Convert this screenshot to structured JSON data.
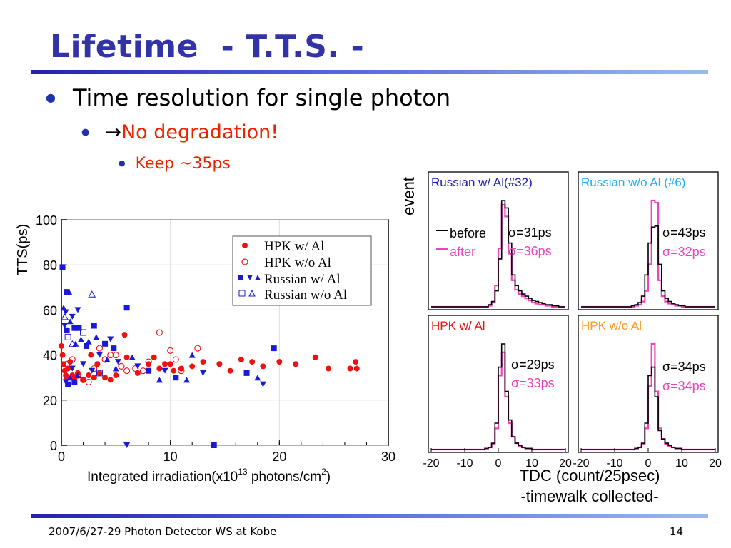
{
  "slide": {
    "title": "Lifetime  - T.T.S. -",
    "bullet1": "Time resolution for single photon",
    "bullet2_arrow": "→",
    "bullet2": "No degradation!",
    "bullet3": "Keep ~35ps",
    "footer_left": "2007/6/27-29 Photon Detector WS at Kobe",
    "footer_right": "14",
    "colors": {
      "title": "#3333a8",
      "accent": "#ee2200",
      "hpk": "#ee1111",
      "russian": "#1a1ad6"
    }
  },
  "chart_data": [
    {
      "type": "scatter",
      "ylabel": "TTS(ps)",
      "xlabel_main": "Integrated irradiation(x10",
      "xlabel_sup1": "13",
      "xlabel_mid": " photons/cm",
      "xlabel_sup2": "2",
      "xlabel_end": ")",
      "xlim": [
        0,
        30
      ],
      "ylim": [
        0,
        100
      ],
      "xticks": [
        "0",
        "10",
        "20",
        "30"
      ],
      "yticks": [
        "0",
        "20",
        "40",
        "60",
        "80",
        "100"
      ],
      "legend": [
        "HPK w/ Al",
        "HPK w/o Al",
        "Russian w/ Al",
        "Russian w/o Al"
      ],
      "legend_position": "top-right",
      "series": [
        {
          "name": "HPK w/ Al",
          "marker": "filled-circle",
          "color": "#ee1111",
          "points": [
            [
              0,
              44
            ],
            [
              0.1,
              40
            ],
            [
              0.2,
              36
            ],
            [
              0.3,
              33
            ],
            [
              0.4,
              31
            ],
            [
              0.5,
              30
            ],
            [
              0.6,
              34
            ],
            [
              0.8,
              37
            ],
            [
              1,
              31
            ],
            [
              1.2,
              30
            ],
            [
              1.5,
              32
            ],
            [
              2,
              29
            ],
            [
              2.5,
              31
            ],
            [
              2.7,
              40
            ],
            [
              3,
              30
            ],
            [
              3.3,
              36
            ],
            [
              3.5,
              32
            ],
            [
              4,
              30
            ],
            [
              4.5,
              29
            ],
            [
              5,
              31
            ],
            [
              5.8,
              49
            ],
            [
              6,
              39
            ],
            [
              7,
              32
            ],
            [
              8,
              36
            ],
            [
              8.5,
              39
            ],
            [
              9,
              34
            ],
            [
              9.5,
              36
            ],
            [
              10,
              36
            ],
            [
              10.3,
              33
            ],
            [
              11,
              34
            ],
            [
              12,
              35
            ],
            [
              13,
              37
            ],
            [
              14.5,
              36
            ],
            [
              15.5,
              33
            ],
            [
              16.5,
              38
            ],
            [
              17.5,
              37
            ],
            [
              18.5,
              35
            ],
            [
              20,
              37
            ],
            [
              21.5,
              36
            ],
            [
              23.3,
              39
            ],
            [
              24.5,
              34
            ],
            [
              26.5,
              34
            ],
            [
              27,
              37
            ],
            [
              27.1,
              34
            ]
          ]
        },
        {
          "name": "HPK w/o Al",
          "marker": "open-circle",
          "color": "#ee1111",
          "points": [
            [
              0.5,
              36
            ],
            [
              1,
              38
            ],
            [
              1.5,
              31
            ],
            [
              2,
              29
            ],
            [
              2.5,
              28
            ],
            [
              3,
              34
            ],
            [
              3.5,
              43
            ],
            [
              4,
              38
            ],
            [
              4.5,
              40
            ],
            [
              5,
              40
            ],
            [
              5.5,
              35
            ],
            [
              6,
              33
            ],
            [
              6.8,
              34
            ],
            [
              7.5,
              33
            ],
            [
              8,
              37
            ],
            [
              9,
              50
            ],
            [
              10,
              42
            ],
            [
              10.5,
              38
            ],
            [
              11,
              33
            ],
            [
              12.5,
              43
            ]
          ]
        },
        {
          "name": "Russian w/ Al",
          "marker": "filled-square-triangle",
          "color": "#1a1ad6",
          "points": [
            [
              0.1,
              79
            ],
            [
              0.2,
              61
            ],
            [
              0.4,
              59
            ],
            [
              0.5,
              68
            ],
            [
              0.7,
              68
            ],
            [
              0.3,
              53
            ],
            [
              0.5,
              51
            ],
            [
              0.8,
              55
            ],
            [
              1,
              57
            ],
            [
              1.2,
              52
            ],
            [
              1.3,
              45
            ],
            [
              1.5,
              60
            ],
            [
              1.6,
              52
            ],
            [
              1.8,
              47
            ],
            [
              0.4,
              28
            ],
            [
              0.6,
              27
            ],
            [
              0.8,
              30
            ],
            [
              1,
              34
            ],
            [
              1.2,
              28
            ],
            [
              1.5,
              31
            ],
            [
              2,
              36
            ],
            [
              2.3,
              44
            ],
            [
              2.5,
              46
            ],
            [
              2.8,
              33
            ],
            [
              3,
              53
            ],
            [
              3.2,
              48
            ],
            [
              3.5,
              40
            ],
            [
              4,
              45
            ],
            [
              4.2,
              38
            ],
            [
              4.5,
              47
            ],
            [
              4.8,
              43
            ],
            [
              5,
              34
            ],
            [
              5.2,
              37
            ],
            [
              6,
              61
            ],
            [
              6.5,
              39
            ],
            [
              7,
              35
            ],
            [
              8,
              33
            ],
            [
              9,
              29
            ],
            [
              9.5,
              33
            ],
            [
              10.5,
              30
            ],
            [
              11.5,
              29
            ],
            [
              13,
              32
            ],
            [
              17,
              32
            ],
            [
              18,
              30
            ],
            [
              18.5,
              27
            ],
            [
              19.5,
              43
            ],
            [
              12,
              40
            ],
            [
              6,
              0
            ],
            [
              14,
              0
            ]
          ]
        },
        {
          "name": "Russian w/o Al",
          "marker": "open-square-triangle",
          "color": "#1a1ad6",
          "points": [
            [
              0.3,
              57
            ],
            [
              0.6,
              48
            ],
            [
              1,
              45
            ],
            [
              2,
              50
            ],
            [
              2.8,
              67
            ],
            [
              3.5,
              32
            ]
          ]
        }
      ]
    },
    {
      "type": "line",
      "xlabel": "TDC (count/25psec)",
      "xlabel_note": "-timewalk collected-",
      "ylabel": "event",
      "xlim": [
        -20,
        20
      ],
      "xticks": [
        "-20",
        "-10",
        "0",
        "10",
        "20"
      ],
      "legend": [
        "before",
        "after"
      ],
      "series_colors": {
        "before": "#000000",
        "after": "#ee44bb"
      },
      "panels": [
        {
          "label": "Russian w/ Al(#32)",
          "label_color": "#1a1aa8",
          "sigma_before": "σ=31ps",
          "sigma_after": "σ=36ps",
          "before": [
            0,
            0,
            0,
            0,
            0,
            0,
            0,
            0,
            0,
            0,
            0,
            0,
            0,
            0,
            0,
            0,
            0,
            2,
            5,
            15,
            45,
            100,
            93,
            60,
            30,
            20,
            15,
            12,
            10,
            8,
            6,
            5,
            4,
            3,
            2,
            2,
            1,
            1,
            0,
            0
          ],
          "after": [
            0,
            0,
            0,
            0,
            0,
            0,
            0,
            0,
            0,
            0,
            0,
            0,
            0,
            0,
            0,
            0,
            0,
            1,
            4,
            20,
            55,
            96,
            85,
            50,
            25,
            16,
            12,
            10,
            8,
            6,
            4,
            3,
            2,
            2,
            1,
            1,
            0,
            0,
            0,
            0
          ]
        },
        {
          "label": "Russian w/o Al (#6)",
          "label_color": "#22aaee",
          "sigma_before": "σ=43ps",
          "sigma_after": "σ=32ps",
          "before": [
            0,
            0,
            0,
            0,
            0,
            0,
            0,
            0,
            0,
            0,
            0,
            0,
            0,
            0,
            0,
            1,
            2,
            4,
            10,
            30,
            60,
            75,
            76,
            40,
            15,
            8,
            5,
            3,
            2,
            1,
            1,
            0,
            0,
            0,
            0,
            0,
            0,
            0,
            0,
            0
          ],
          "after": [
            0,
            0,
            0,
            0,
            0,
            0,
            0,
            0,
            0,
            0,
            0,
            0,
            0,
            0,
            0,
            0,
            1,
            2,
            5,
            15,
            40,
            100,
            98,
            25,
            10,
            5,
            3,
            2,
            1,
            1,
            0,
            0,
            0,
            0,
            0,
            0,
            0,
            0,
            0,
            0
          ]
        },
        {
          "label": "HPK w/ Al",
          "label_color": "#ee1111",
          "sigma_before": "σ=29ps",
          "sigma_after": "σ=33ps",
          "before": [
            0,
            0,
            0,
            0,
            0,
            0,
            0,
            0,
            0,
            0,
            0,
            0,
            0,
            0,
            0,
            0,
            1,
            2,
            6,
            25,
            78,
            100,
            55,
            28,
            12,
            6,
            4,
            2,
            1,
            1,
            0,
            0,
            0,
            0,
            0,
            0,
            0,
            0,
            0,
            0
          ],
          "after": [
            0,
            0,
            0,
            0,
            0,
            0,
            0,
            0,
            0,
            0,
            0,
            0,
            0,
            0,
            0,
            0,
            1,
            2,
            5,
            20,
            70,
            92,
            50,
            25,
            12,
            6,
            3,
            2,
            1,
            1,
            0,
            0,
            0,
            0,
            0,
            0,
            0,
            0,
            0,
            0
          ]
        },
        {
          "label": "HPK w/o Al",
          "label_color": "#ff9922",
          "sigma_before": "σ=34ps",
          "sigma_after": "σ=34ps",
          "before": [
            0,
            0,
            0,
            0,
            0,
            0,
            0,
            0,
            0,
            0,
            0,
            0,
            0,
            0,
            0,
            0,
            1,
            2,
            6,
            25,
            70,
            78,
            50,
            18,
            10,
            6,
            4,
            2,
            1,
            1,
            0,
            0,
            0,
            0,
            0,
            0,
            0,
            0,
            0,
            0
          ],
          "after": [
            0,
            0,
            0,
            0,
            0,
            0,
            0,
            0,
            0,
            0,
            0,
            0,
            0,
            0,
            0,
            0,
            1,
            2,
            5,
            20,
            60,
            100,
            55,
            20,
            10,
            5,
            3,
            2,
            1,
            1,
            0,
            0,
            0,
            0,
            0,
            0,
            0,
            0,
            0,
            0
          ]
        }
      ]
    }
  ]
}
